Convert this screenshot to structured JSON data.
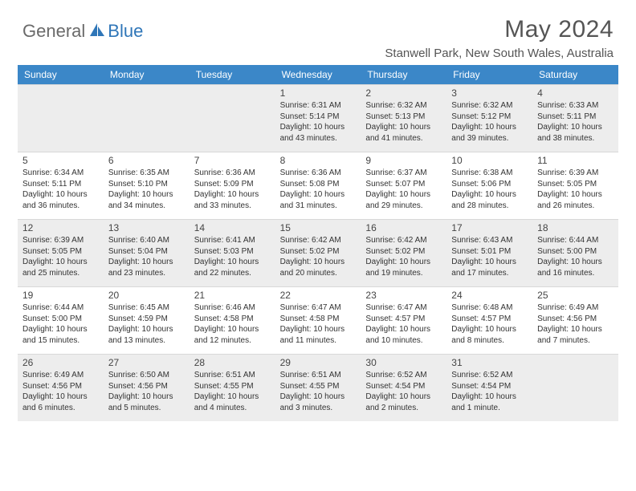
{
  "logo": {
    "part1": "General",
    "part2": "Blue"
  },
  "title": "May 2024",
  "location": "Stanwell Park, New South Wales, Australia",
  "colors": {
    "header_bg": "#3b87c8",
    "shade_bg": "#ededed",
    "logo_gray": "#6a6a6a",
    "logo_blue": "#2f76b8"
  },
  "day_names": [
    "Sunday",
    "Monday",
    "Tuesday",
    "Wednesday",
    "Thursday",
    "Friday",
    "Saturday"
  ],
  "weeks": [
    [
      {
        "empty": true
      },
      {
        "empty": true
      },
      {
        "empty": true
      },
      {
        "day": "1",
        "sunrise": "Sunrise: 6:31 AM",
        "sunset": "Sunset: 5:14 PM",
        "daylight": "Daylight: 10 hours and 43 minutes."
      },
      {
        "day": "2",
        "sunrise": "Sunrise: 6:32 AM",
        "sunset": "Sunset: 5:13 PM",
        "daylight": "Daylight: 10 hours and 41 minutes."
      },
      {
        "day": "3",
        "sunrise": "Sunrise: 6:32 AM",
        "sunset": "Sunset: 5:12 PM",
        "daylight": "Daylight: 10 hours and 39 minutes."
      },
      {
        "day": "4",
        "sunrise": "Sunrise: 6:33 AM",
        "sunset": "Sunset: 5:11 PM",
        "daylight": "Daylight: 10 hours and 38 minutes."
      }
    ],
    [
      {
        "day": "5",
        "sunrise": "Sunrise: 6:34 AM",
        "sunset": "Sunset: 5:11 PM",
        "daylight": "Daylight: 10 hours and 36 minutes."
      },
      {
        "day": "6",
        "sunrise": "Sunrise: 6:35 AM",
        "sunset": "Sunset: 5:10 PM",
        "daylight": "Daylight: 10 hours and 34 minutes."
      },
      {
        "day": "7",
        "sunrise": "Sunrise: 6:36 AM",
        "sunset": "Sunset: 5:09 PM",
        "daylight": "Daylight: 10 hours and 33 minutes."
      },
      {
        "day": "8",
        "sunrise": "Sunrise: 6:36 AM",
        "sunset": "Sunset: 5:08 PM",
        "daylight": "Daylight: 10 hours and 31 minutes."
      },
      {
        "day": "9",
        "sunrise": "Sunrise: 6:37 AM",
        "sunset": "Sunset: 5:07 PM",
        "daylight": "Daylight: 10 hours and 29 minutes."
      },
      {
        "day": "10",
        "sunrise": "Sunrise: 6:38 AM",
        "sunset": "Sunset: 5:06 PM",
        "daylight": "Daylight: 10 hours and 28 minutes."
      },
      {
        "day": "11",
        "sunrise": "Sunrise: 6:39 AM",
        "sunset": "Sunset: 5:05 PM",
        "daylight": "Daylight: 10 hours and 26 minutes."
      }
    ],
    [
      {
        "day": "12",
        "sunrise": "Sunrise: 6:39 AM",
        "sunset": "Sunset: 5:05 PM",
        "daylight": "Daylight: 10 hours and 25 minutes."
      },
      {
        "day": "13",
        "sunrise": "Sunrise: 6:40 AM",
        "sunset": "Sunset: 5:04 PM",
        "daylight": "Daylight: 10 hours and 23 minutes."
      },
      {
        "day": "14",
        "sunrise": "Sunrise: 6:41 AM",
        "sunset": "Sunset: 5:03 PM",
        "daylight": "Daylight: 10 hours and 22 minutes."
      },
      {
        "day": "15",
        "sunrise": "Sunrise: 6:42 AM",
        "sunset": "Sunset: 5:02 PM",
        "daylight": "Daylight: 10 hours and 20 minutes."
      },
      {
        "day": "16",
        "sunrise": "Sunrise: 6:42 AM",
        "sunset": "Sunset: 5:02 PM",
        "daylight": "Daylight: 10 hours and 19 minutes."
      },
      {
        "day": "17",
        "sunrise": "Sunrise: 6:43 AM",
        "sunset": "Sunset: 5:01 PM",
        "daylight": "Daylight: 10 hours and 17 minutes."
      },
      {
        "day": "18",
        "sunrise": "Sunrise: 6:44 AM",
        "sunset": "Sunset: 5:00 PM",
        "daylight": "Daylight: 10 hours and 16 minutes."
      }
    ],
    [
      {
        "day": "19",
        "sunrise": "Sunrise: 6:44 AM",
        "sunset": "Sunset: 5:00 PM",
        "daylight": "Daylight: 10 hours and 15 minutes."
      },
      {
        "day": "20",
        "sunrise": "Sunrise: 6:45 AM",
        "sunset": "Sunset: 4:59 PM",
        "daylight": "Daylight: 10 hours and 13 minutes."
      },
      {
        "day": "21",
        "sunrise": "Sunrise: 6:46 AM",
        "sunset": "Sunset: 4:58 PM",
        "daylight": "Daylight: 10 hours and 12 minutes."
      },
      {
        "day": "22",
        "sunrise": "Sunrise: 6:47 AM",
        "sunset": "Sunset: 4:58 PM",
        "daylight": "Daylight: 10 hours and 11 minutes."
      },
      {
        "day": "23",
        "sunrise": "Sunrise: 6:47 AM",
        "sunset": "Sunset: 4:57 PM",
        "daylight": "Daylight: 10 hours and 10 minutes."
      },
      {
        "day": "24",
        "sunrise": "Sunrise: 6:48 AM",
        "sunset": "Sunset: 4:57 PM",
        "daylight": "Daylight: 10 hours and 8 minutes."
      },
      {
        "day": "25",
        "sunrise": "Sunrise: 6:49 AM",
        "sunset": "Sunset: 4:56 PM",
        "daylight": "Daylight: 10 hours and 7 minutes."
      }
    ],
    [
      {
        "day": "26",
        "sunrise": "Sunrise: 6:49 AM",
        "sunset": "Sunset: 4:56 PM",
        "daylight": "Daylight: 10 hours and 6 minutes."
      },
      {
        "day": "27",
        "sunrise": "Sunrise: 6:50 AM",
        "sunset": "Sunset: 4:56 PM",
        "daylight": "Daylight: 10 hours and 5 minutes."
      },
      {
        "day": "28",
        "sunrise": "Sunrise: 6:51 AM",
        "sunset": "Sunset: 4:55 PM",
        "daylight": "Daylight: 10 hours and 4 minutes."
      },
      {
        "day": "29",
        "sunrise": "Sunrise: 6:51 AM",
        "sunset": "Sunset: 4:55 PM",
        "daylight": "Daylight: 10 hours and 3 minutes."
      },
      {
        "day": "30",
        "sunrise": "Sunrise: 6:52 AM",
        "sunset": "Sunset: 4:54 PM",
        "daylight": "Daylight: 10 hours and 2 minutes."
      },
      {
        "day": "31",
        "sunrise": "Sunrise: 6:52 AM",
        "sunset": "Sunset: 4:54 PM",
        "daylight": "Daylight: 10 hours and 1 minute."
      },
      {
        "empty": true
      }
    ]
  ]
}
